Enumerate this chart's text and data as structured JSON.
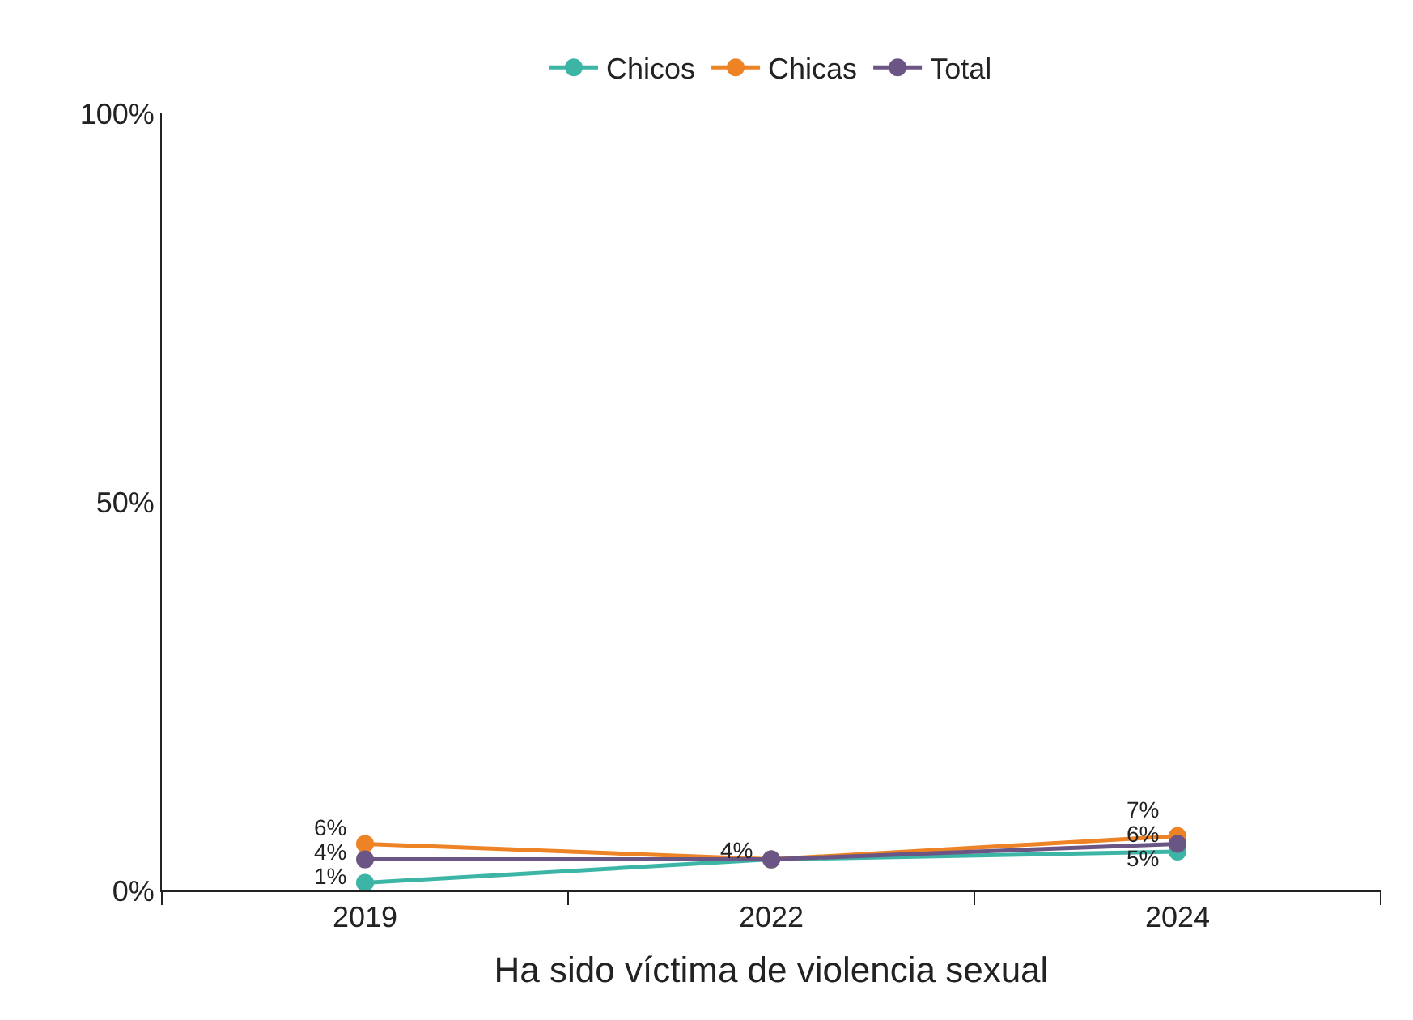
{
  "chart_data": {
    "type": "line",
    "xlabel": "Ha sido víctima de violencia sexual",
    "categories": [
      "2019",
      "2022",
      "2024"
    ],
    "series": [
      {
        "name": "Chicos",
        "color": "#3db5a6",
        "values": [
          1,
          4,
          5
        ],
        "value_labels": [
          "1%",
          null,
          "5%"
        ]
      },
      {
        "name": "Chicas",
        "color": "#ee8326",
        "values": [
          6,
          4,
          7
        ],
        "value_labels": [
          "6%",
          null,
          "7%"
        ]
      },
      {
        "name": "Total",
        "color": "#6b5585",
        "values": [
          4,
          4,
          6
        ],
        "value_labels": [
          "4%",
          "4%",
          "6%"
        ]
      }
    ],
    "ylim": [
      0,
      100
    ],
    "yticks": [
      {
        "value": 0,
        "label": "0%"
      },
      {
        "value": 50,
        "label": "50%"
      },
      {
        "value": 100,
        "label": "100%"
      }
    ],
    "legend": "top",
    "marker": "circle",
    "line_style": "solid"
  }
}
